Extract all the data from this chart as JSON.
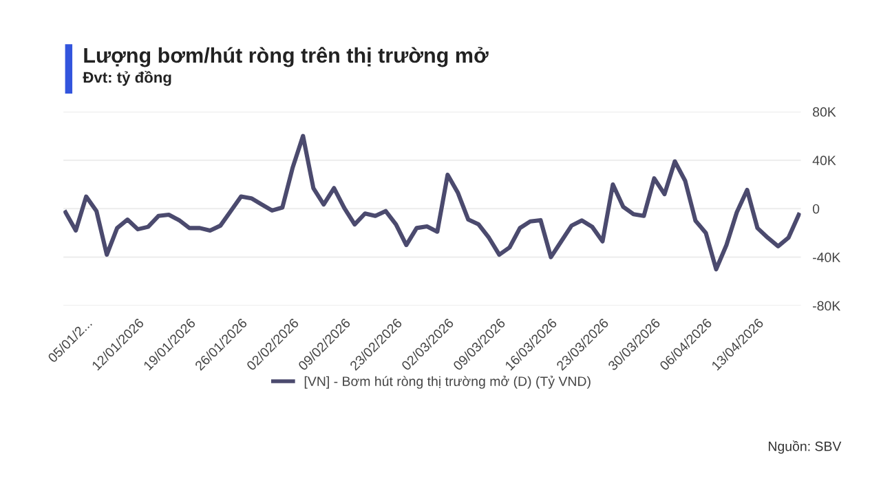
{
  "chart_data": {
    "type": "line",
    "title": "Lượng bơm/hút ròng trên thị trường mở",
    "subtitle": "Đvt: tỷ đồng",
    "categories": [
      null,
      null,
      "05/01/2...",
      null,
      null,
      null,
      null,
      "12/01/2026",
      null,
      null,
      null,
      null,
      "19/01/2026",
      null,
      null,
      null,
      null,
      "26/01/2026",
      null,
      null,
      null,
      null,
      "02/02/2026",
      null,
      null,
      null,
      null,
      "09/02/2026",
      null,
      null,
      null,
      null,
      "23/02/2026",
      null,
      null,
      null,
      null,
      "02/03/2026",
      null,
      null,
      null,
      null,
      "09/03/2026",
      null,
      null,
      null,
      null,
      "16/03/2026",
      null,
      null,
      null,
      null,
      "23/03/2026",
      null,
      null,
      null,
      null,
      "30/03/2026",
      null,
      null,
      null,
      null,
      "06/04/2026",
      null,
      null,
      null,
      null,
      "13/04/2026",
      null,
      null,
      null,
      null
    ],
    "series": [
      {
        "name": "[VN] - Bơm hút ròng thị trường mở (D) (Tỷ VND)",
        "color": "#4b4a6e",
        "values": [
          -3000,
          -18000,
          10000,
          -2000,
          -38000,
          -16000,
          -9000,
          -17000,
          -15000,
          -6000,
          -5000,
          -9500,
          -16000,
          -16000,
          -18000,
          -14000,
          -2000,
          10000,
          8500,
          3400,
          -1500,
          1000,
          34000,
          60000,
          17000,
          3500,
          17000,
          500,
          -13000,
          -4000,
          -6000,
          -2000,
          -13000,
          -30000,
          -16000,
          -14700,
          -19000,
          28000,
          13000,
          -9000,
          -13000,
          -24000,
          -38000,
          -32000,
          -16000,
          -10500,
          -9500,
          -40000,
          -27000,
          -14000,
          -9700,
          -15000,
          -27000,
          20000,
          1500,
          -4500,
          -6000,
          25000,
          12000,
          39000,
          23000,
          -10000,
          -20000,
          -50000,
          -30000,
          -3000,
          15500,
          -16000,
          -24000,
          -31000,
          -24000,
          -5000
        ]
      }
    ],
    "ylim": [
      -80000,
      80000
    ],
    "yticks": [
      {
        "value": -80000,
        "label": "-80K"
      },
      {
        "value": -40000,
        "label": "-40K"
      },
      0,
      {
        "value": 40000,
        "label": "40K"
      },
      {
        "value": 80000,
        "label": "80K"
      }
    ],
    "grid": "y",
    "legend": "bottom",
    "marker": "none",
    "line_style": "solid",
    "annotations": [
      "Nguồn: SBV"
    ]
  }
}
